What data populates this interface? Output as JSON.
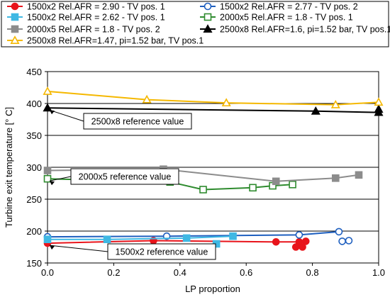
{
  "chart_data": {
    "type": "line",
    "title": "",
    "xlabel": "LP proportion",
    "ylabel": "Turbine exit temperature [° C]",
    "xlim": [
      0,
      1
    ],
    "ylim": [
      150,
      450
    ],
    "xticks": [
      "0.0",
      "0.2",
      "0.4",
      "0.6",
      "0.8",
      "1.0"
    ],
    "yticks": [
      "150",
      "200",
      "250",
      "300",
      "350",
      "400",
      "450"
    ],
    "grid": "horizontal",
    "legend_placement": "top",
    "series": [
      {
        "name": "1500x2 Rel.AFR = 2.90 - TV pos. 1",
        "color": "#e8141b",
        "marker": "circle",
        "filled": true,
        "x": [
          0.0,
          0.32,
          0.69,
          0.76,
          0.78
        ],
        "y": [
          181,
          185,
          183,
          183,
          184
        ],
        "extra_points": {
          "x": [
            0.75,
            0.77
          ],
          "y": [
            175,
            175
          ]
        }
      },
      {
        "name": "1500x2 Rel.AFR = 2.77 - TV pos. 2",
        "color": "#1e5fbf",
        "marker": "circle",
        "filled": false,
        "x": [
          0.0,
          0.36,
          0.76,
          0.88
        ],
        "y": [
          191,
          192,
          194,
          199
        ],
        "extra_points": {
          "x": [
            0.89,
            0.91
          ],
          "y": [
            184,
            185
          ]
        }
      },
      {
        "name": "1500x2 Rel.AFR = 2.62 - TV pos. 1",
        "color": "#3fb8e3",
        "marker": "square",
        "filled": true,
        "x": [
          0.0,
          0.18,
          0.42,
          0.56
        ],
        "y": [
          187,
          187,
          189,
          192
        ],
        "extra_points": {
          "x": [
            0.51
          ],
          "y": [
            180
          ]
        }
      },
      {
        "name": "2000x5 Rel.AFR = 1.8 - TV pos. 1",
        "color": "#2e8b2e",
        "marker": "square",
        "filled": false,
        "x": [
          0.0,
          0.37,
          0.47,
          0.62,
          0.68,
          0.74
        ],
        "y": [
          282,
          277,
          265,
          268,
          271,
          273
        ]
      },
      {
        "name": "2000x5 Rel.AFR = 1.8 - TV pos. 2",
        "color": "#8c8c8c",
        "marker": "square",
        "filled": true,
        "x": [
          0.0,
          0.35,
          0.69,
          0.87,
          0.94
        ],
        "y": [
          295,
          297,
          278,
          283,
          288
        ]
      },
      {
        "name": "2500x8 Rel.AFR=1.6, pi=1.52 bar, TV pos.1",
        "color": "#000000",
        "marker": "triangle",
        "filled": true,
        "x": [
          0.0,
          0.81,
          1.0
        ],
        "y": [
          393,
          388,
          386
        ],
        "extra_points": {
          "x": [
            1.0
          ],
          "y": [
            391
          ]
        }
      },
      {
        "name": "2500x8 Rel.AFR=1.47, pi=1.52 bar, TV pos.1",
        "color": "#f5b800",
        "marker": "triangle",
        "filled": false,
        "x": [
          0.0,
          0.3,
          0.54,
          0.87,
          1.0
        ],
        "y": [
          419,
          406,
          401,
          398,
          402
        ]
      }
    ],
    "annotations": [
      {
        "text": "2500x8 reference value",
        "x": 0.0,
        "y": 393
      },
      {
        "text": "2000x5 reference value",
        "x": 0.0,
        "y": 282
      },
      {
        "text": "1500x2 reference value",
        "x": 0.0,
        "y": 181
      }
    ]
  }
}
